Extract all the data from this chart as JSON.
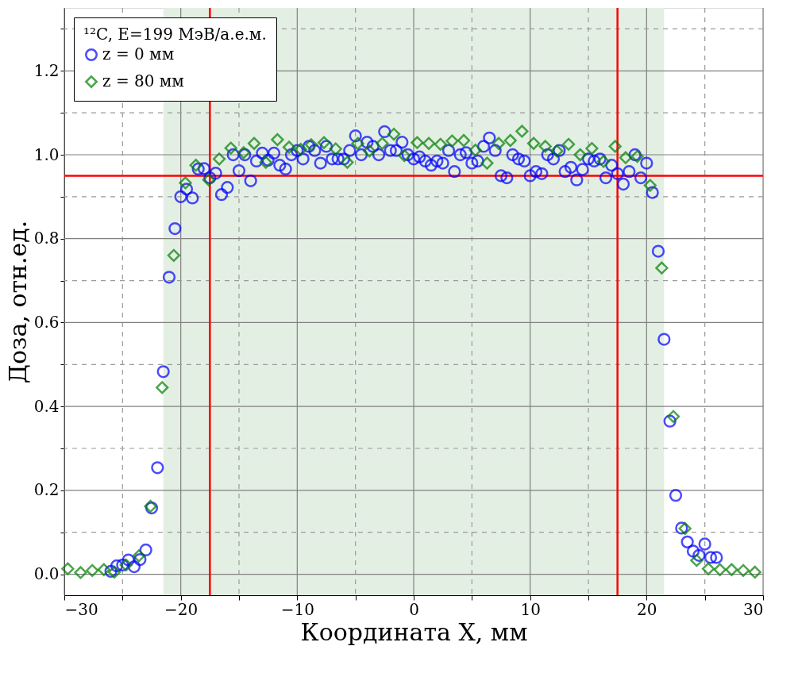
{
  "chart_data": {
    "type": "scatter",
    "xlabel": "Координата X, мм",
    "ylabel": "Доза, отн.ед.",
    "legend_title": "¹²C, E=199 МэВ/а.е.м.",
    "legend": "top left",
    "grid": true,
    "xlim": [
      -30,
      30
    ],
    "ylim": [
      -0.05,
      1.35
    ],
    "xticks": [
      {
        "value": -30,
        "label": "−30"
      },
      {
        "value": -25,
        "label": null
      },
      {
        "value": -20,
        "label": "−20"
      },
      {
        "value": -15,
        "label": null
      },
      {
        "value": -10,
        "label": "−10"
      },
      {
        "value": -5,
        "label": null
      },
      {
        "value": 0,
        "label": "0"
      },
      {
        "value": 5,
        "label": null
      },
      {
        "value": 10,
        "label": "10"
      },
      {
        "value": 15,
        "label": null
      },
      {
        "value": 20,
        "label": "20"
      },
      {
        "value": 25,
        "label": null
      },
      {
        "value": 30,
        "label": "30"
      }
    ],
    "yticks": [
      {
        "value": 0,
        "label": "0.0"
      },
      {
        "value": 0.1,
        "label": null
      },
      {
        "value": 0.2,
        "label": "0.2"
      },
      {
        "value": 0.3,
        "label": null
      },
      {
        "value": 0.4,
        "label": "0.4"
      },
      {
        "value": 0.5,
        "label": null
      },
      {
        "value": 0.6,
        "label": "0.6"
      },
      {
        "value": 0.7,
        "label": null
      },
      {
        "value": 0.8,
        "label": "0.8"
      },
      {
        "value": 0.9,
        "label": null
      },
      {
        "value": 1.0,
        "label": "1.0"
      },
      {
        "value": 1.1,
        "label": null
      },
      {
        "value": 1.2,
        "label": "1.2"
      },
      {
        "value": 1.3,
        "label": null
      }
    ],
    "bands": [
      {
        "axis": "x",
        "from": -21.5,
        "to": 21.5,
        "color": "#e4efe4"
      }
    ],
    "ref_lines": [
      {
        "axis": "x",
        "value": -17.5,
        "color": "#ff0000"
      },
      {
        "axis": "x",
        "value": 17.5,
        "color": "#ff0000"
      },
      {
        "axis": "y",
        "value": 0.95,
        "color": "#ff0000"
      }
    ],
    "series": [
      {
        "name": "z = 0 мм",
        "color": "#0000ff",
        "marker": "circle",
        "x": [
          -26,
          -25.5,
          -25,
          -24.5,
          -24,
          -23.5,
          -23,
          -22.5,
          -22,
          -21.5,
          -21,
          -20.5,
          -20,
          -19.5,
          -19,
          -18.5,
          -18,
          -17.5,
          -17,
          -16.5,
          -16,
          -15.5,
          -15,
          -14.5,
          -14,
          -13.5,
          -13,
          -12.5,
          -12,
          -11.5,
          -11,
          -10.5,
          -10,
          -9.5,
          -9,
          -8.5,
          -8,
          -7.5,
          -7,
          -6.5,
          -6,
          -5.5,
          -5,
          -4.5,
          -4,
          -3.5,
          -3,
          -2.5,
          -2,
          -1.5,
          -1,
          -0.5,
          0,
          0.5,
          1,
          1.5,
          2,
          2.5,
          3,
          3.5,
          4,
          4.5,
          5,
          5.5,
          6,
          6.5,
          7,
          7.5,
          8,
          8.5,
          9,
          9.5,
          10,
          10.5,
          11,
          11.5,
          12,
          12.5,
          13,
          13.5,
          14,
          14.5,
          15,
          15.5,
          16,
          16.5,
          17,
          17.5,
          18,
          18.5,
          19,
          19.5,
          20,
          20.5,
          21,
          21.5,
          22,
          22.5,
          23,
          23.5,
          24,
          24.5,
          25,
          25.5,
          26
        ],
        "values": [
          0.007,
          0.02,
          0.022,
          0.034,
          0.018,
          0.035,
          0.058,
          0.158,
          0.254,
          0.483,
          0.708,
          0.824,
          0.9,
          0.918,
          0.897,
          0.966,
          0.967,
          0.945,
          0.956,
          0.905,
          0.922,
          1.0,
          0.962,
          1.0,
          0.938,
          0.985,
          1.004,
          0.987,
          1.004,
          0.975,
          0.966,
          1.0,
          1.01,
          0.99,
          1.02,
          1.01,
          0.98,
          1.02,
          0.99,
          0.99,
          0.99,
          1.01,
          1.045,
          1.0,
          1.03,
          1.02,
          1.0,
          1.055,
          1.01,
          1.01,
          1.03,
          1.0,
          0.99,
          0.995,
          0.985,
          0.975,
          0.985,
          0.98,
          1.01,
          0.96,
          1.0,
          1.005,
          0.98,
          0.985,
          1.02,
          1.04,
          1.01,
          0.95,
          0.945,
          1.0,
          0.99,
          0.985,
          0.95,
          0.96,
          0.955,
          1.0,
          0.99,
          1.01,
          0.96,
          0.97,
          0.94,
          0.965,
          0.99,
          0.985,
          0.99,
          0.945,
          0.975,
          0.955,
          0.93,
          0.96,
          1.0,
          0.945,
          0.98,
          0.91,
          0.77,
          0.56,
          0.365,
          0.188,
          0.11,
          0.077,
          0.055,
          0.045,
          0.072,
          0.04,
          0.04
        ]
      },
      {
        "name": "z = 80 мм",
        "color": "#007f00",
        "marker": "diamond",
        "x": [
          -29.7,
          -28.6,
          -27.6,
          -26.6,
          -25.7,
          -24.7,
          -23.6,
          -22.6,
          -21.6,
          -20.6,
          -19.6,
          -18.7,
          -17.6,
          -16.7,
          -15.7,
          -14.6,
          -13.7,
          -12.7,
          -11.7,
          -10.7,
          -9.7,
          -8.8,
          -7.7,
          -6.7,
          -5.7,
          -4.8,
          -3.8,
          -2.7,
          -1.7,
          -0.8,
          0.3,
          1.3,
          2.3,
          3.3,
          4.3,
          5.3,
          6.3,
          7.3,
          8.3,
          9.3,
          10.3,
          11.3,
          12.3,
          13.3,
          14.3,
          15.3,
          16.3,
          17.3,
          18.2,
          19.2,
          20.3,
          21.3,
          22.3,
          23.3,
          24.3,
          25.3,
          26.3,
          27.3,
          28.3,
          29.3
        ],
        "values": [
          0.013,
          0.004,
          0.009,
          0.011,
          0.005,
          0.022,
          0.044,
          0.162,
          0.445,
          0.76,
          0.933,
          0.975,
          0.94,
          0.99,
          1.016,
          1.005,
          1.027,
          0.982,
          1.036,
          1.018,
          1.013,
          1.024,
          1.029,
          1.014,
          0.982,
          1.027,
          1.009,
          1.027,
          1.049,
          0.998,
          1.029,
          1.027,
          1.025,
          1.033,
          1.034,
          1.011,
          0.98,
          1.027,
          1.034,
          1.056,
          1.027,
          1.02,
          1.009,
          1.025,
          1.0,
          1.015,
          0.984,
          1.02,
          0.993,
          0.996,
          0.927,
          0.73,
          0.376,
          0.109,
          0.033,
          0.013,
          0.011,
          0.011,
          0.009,
          0.005
        ]
      }
    ]
  }
}
